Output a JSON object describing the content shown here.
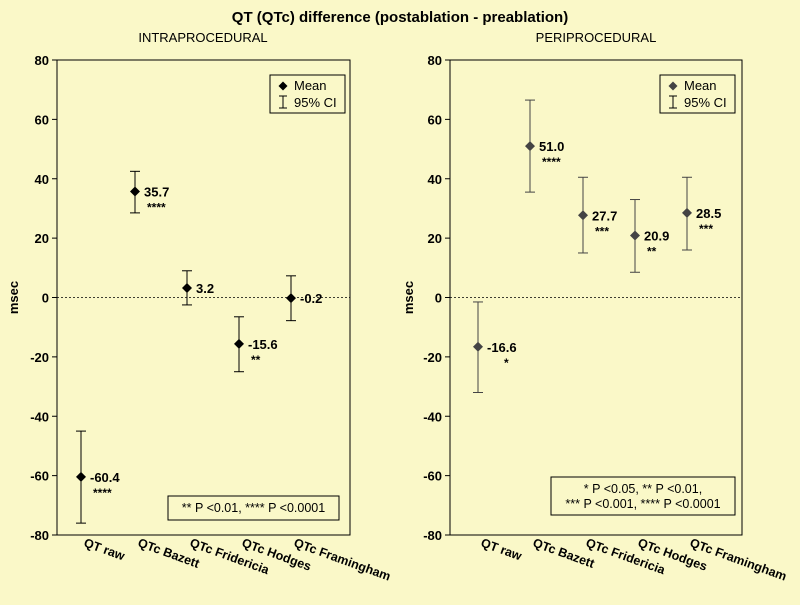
{
  "title": "QT (QTc) difference (postablation - preablation)",
  "legend": {
    "mean_label": "Mean",
    "ci_label": "95% CI"
  },
  "chart_data": [
    {
      "type": "scatter",
      "subtitle": "INTRAPROCEDURAL",
      "ylabel": "msec",
      "ylim": [
        -80,
        80
      ],
      "yticks": [
        80,
        60,
        40,
        20,
        0,
        -20,
        -40,
        -60,
        -80
      ],
      "categories": [
        "QT raw",
        "QTc Bazett",
        "QTc Fridericia",
        "QTc Hodges",
        "QTc Framingham"
      ],
      "means": [
        -60.4,
        35.7,
        3.2,
        -15.6,
        -0.2
      ],
      "mean_labels": [
        "-60.4",
        "35.7",
        "3.2",
        "-15.6",
        "-0.2"
      ],
      "ci_low": [
        -76,
        28.5,
        -2.5,
        -25,
        -7.8
      ],
      "ci_high": [
        -45,
        42.5,
        9,
        -6.5,
        7.3
      ],
      "significance": [
        "****",
        "****",
        "",
        "**",
        ""
      ],
      "note_lines": [
        "** P <0.01, **** P <0.0001"
      ],
      "marker_color": "#000000",
      "legend_position": "top-right",
      "zero_line": "dashed"
    },
    {
      "type": "scatter",
      "subtitle": "PERIPROCEDURAL",
      "ylabel": "msec",
      "ylim": [
        -80,
        80
      ],
      "yticks": [
        80,
        60,
        40,
        20,
        0,
        -20,
        -40,
        -60,
        -80
      ],
      "categories": [
        "QT raw",
        "QTc Bazett",
        "QTc Fridericia",
        "QTc Hodges",
        "QTc Framingham"
      ],
      "means": [
        -16.6,
        51.0,
        27.7,
        20.9,
        28.5
      ],
      "mean_labels": [
        "-16.6",
        "51.0",
        "27.7",
        "20.9",
        "28.5"
      ],
      "ci_low": [
        -32,
        35.5,
        15,
        8.5,
        16
      ],
      "ci_high": [
        -1.5,
        66.5,
        40.5,
        33,
        40.5
      ],
      "significance": [
        "*",
        "****",
        "***",
        "**",
        "***"
      ],
      "note_lines": [
        "* P <0.05, ** P <0.01,",
        "*** P <0.001, **** P <0.0001"
      ],
      "marker_color": "#444444",
      "legend_position": "top-right",
      "zero_line": "dashed"
    }
  ]
}
